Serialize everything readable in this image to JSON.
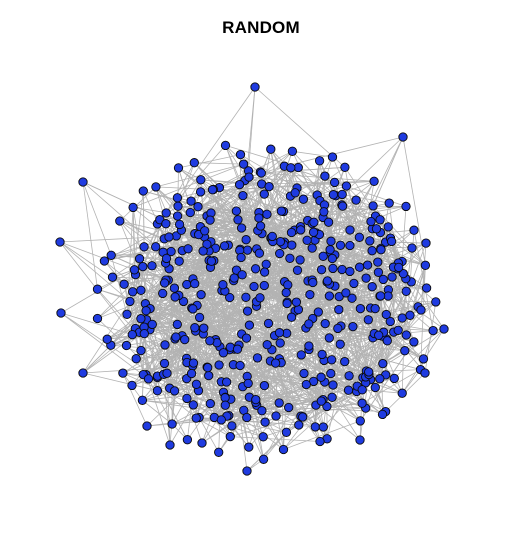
{
  "title": "RANDOM",
  "colors": {
    "background": "#ffffff",
    "node_fill": "#1f3be0",
    "node_stroke": "#0a0a0a",
    "edge": "#b3b3b3",
    "title": "#000000"
  }
}
